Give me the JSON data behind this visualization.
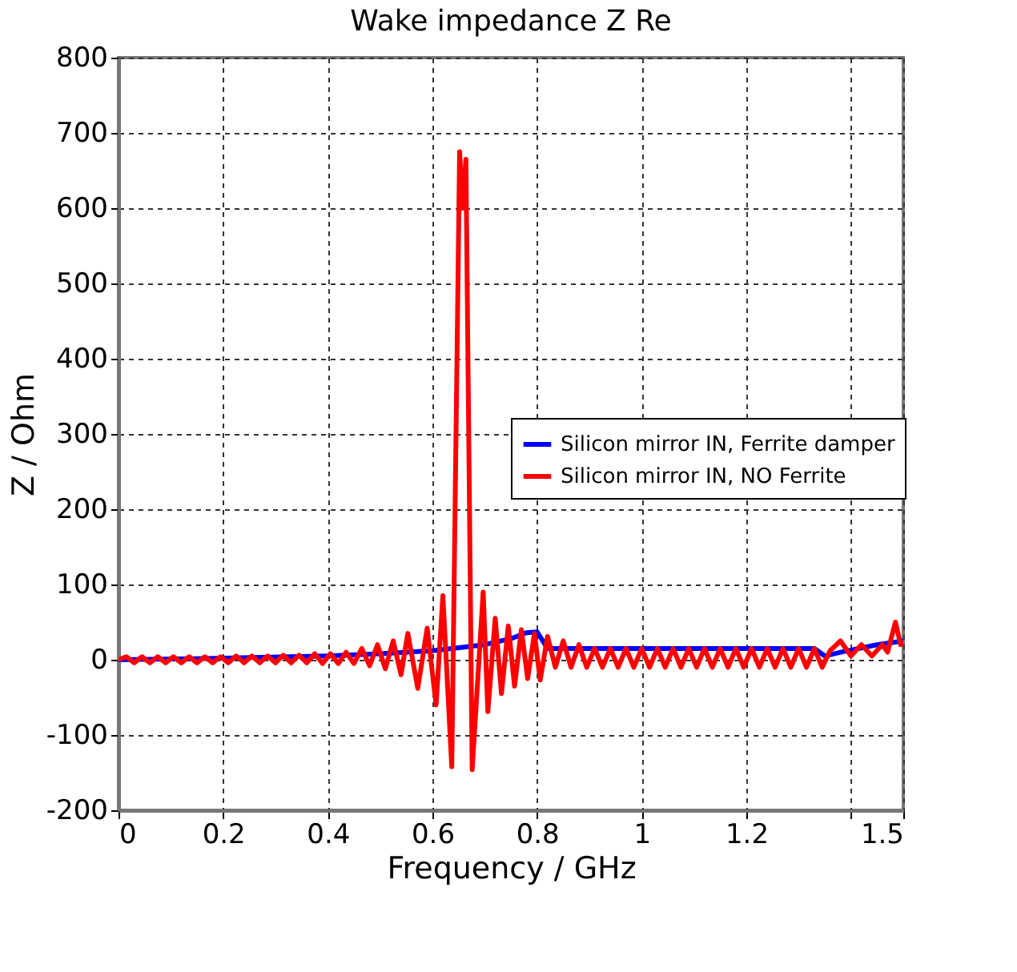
{
  "chart_data": {
    "type": "line",
    "title": "Wake impedance Z Re",
    "xlabel": "Frequency / GHz",
    "ylabel": "Z / Ohm",
    "xlim": [
      0,
      1.5
    ],
    "ylim": [
      -200,
      800
    ],
    "xticks": [
      0,
      0.2,
      0.4,
      0.6,
      0.8,
      1,
      1.2,
      {
        "value": 1.4,
        "label": null
      },
      1.5
    ],
    "yticks": [
      -200,
      -100,
      0,
      100,
      200,
      300,
      400,
      500,
      600,
      700,
      800
    ],
    "grid": true,
    "legend": "right",
    "line_style": "solid",
    "marker": "none",
    "series": [
      {
        "name": "Silicon mirror IN, Ferrite damper",
        "color": "#0000ff",
        "x": [
          0,
          0.2,
          0.4,
          0.5,
          0.6,
          0.7,
          0.75,
          0.78,
          0.8,
          0.82,
          0.85,
          1.0,
          1.2,
          1.33,
          1.35,
          1.38,
          1.45,
          1.5
        ],
        "values": [
          0,
          2,
          5,
          8,
          12,
          20,
          28,
          36,
          37,
          15,
          15,
          15,
          15,
          15,
          5,
          10,
          20,
          25
        ]
      },
      {
        "name": "Silicon mirror IN, NO Ferrite",
        "color": "#ff0000",
        "x": [
          0,
          0.015,
          0.03,
          0.045,
          0.06,
          0.075,
          0.09,
          0.105,
          0.12,
          0.135,
          0.15,
          0.165,
          0.18,
          0.195,
          0.21,
          0.225,
          0.24,
          0.255,
          0.27,
          0.285,
          0.3,
          0.315,
          0.33,
          0.345,
          0.36,
          0.375,
          0.39,
          0.405,
          0.42,
          0.435,
          0.45,
          0.465,
          0.48,
          0.495,
          0.51,
          0.525,
          0.54,
          0.553,
          0.572,
          0.59,
          0.607,
          0.62,
          0.637,
          0.652,
          0.658,
          0.664,
          0.676,
          0.697,
          0.706,
          0.72,
          0.732,
          0.745,
          0.757,
          0.77,
          0.782,
          0.795,
          0.806,
          0.82,
          0.835,
          0.85,
          0.865,
          0.88,
          0.895,
          0.91,
          0.925,
          0.94,
          0.955,
          0.97,
          0.985,
          1.0,
          1.015,
          1.03,
          1.045,
          1.06,
          1.075,
          1.09,
          1.105,
          1.12,
          1.135,
          1.15,
          1.165,
          1.18,
          1.195,
          1.21,
          1.225,
          1.24,
          1.255,
          1.27,
          1.285,
          1.3,
          1.315,
          1.33,
          1.345,
          1.36,
          1.38,
          1.4,
          1.42,
          1.44,
          1.46,
          1.47,
          1.485,
          1.495,
          1.5
        ],
        "values": [
          0,
          4,
          -4,
          4,
          -4,
          4,
          -4,
          4,
          -4,
          4,
          -4,
          4,
          -4,
          4,
          -4,
          5,
          -4,
          5,
          -4,
          5,
          -4,
          6,
          -4,
          6,
          -4,
          8,
          -5,
          8,
          -5,
          10,
          -5,
          15,
          -8,
          20,
          -12,
          25,
          -20,
          35,
          -38,
          42,
          -60,
          85,
          -142,
          675,
          600,
          665,
          -146,
          90,
          -69,
          55,
          -45,
          45,
          -35,
          40,
          -25,
          35,
          -27,
          31,
          -10,
          25,
          -10,
          20,
          -10,
          15,
          -10,
          15,
          -10,
          15,
          -10,
          15,
          -10,
          15,
          -10,
          15,
          -10,
          15,
          -10,
          15,
          -10,
          15,
          -10,
          15,
          -10,
          15,
          -10,
          15,
          -10,
          15,
          -10,
          15,
          -10,
          15,
          -10,
          12,
          25,
          5,
          20,
          5,
          20,
          10,
          50,
          20,
          25
        ]
      }
    ]
  }
}
